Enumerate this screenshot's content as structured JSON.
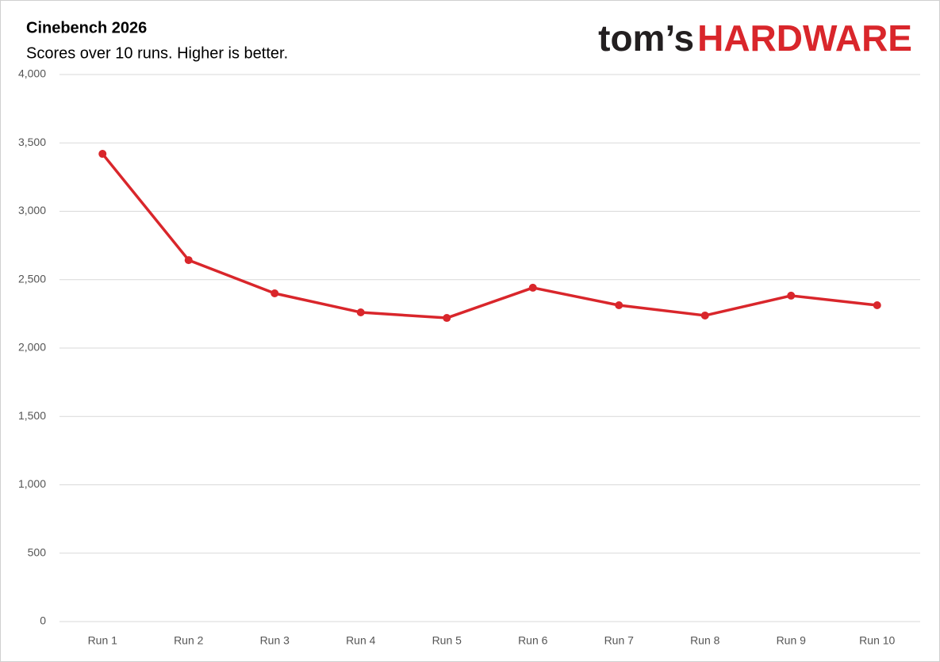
{
  "chart_data": {
    "type": "line",
    "title": "Cinebench 2026",
    "subtitle": "Scores over 10 runs. Higher is better.",
    "brand": {
      "prefix": "tom’s",
      "name": "HARDWARE"
    },
    "categories": [
      "Run 1",
      "Run 2",
      "Run 3",
      "Run 4",
      "Run 5",
      "Run 6",
      "Run 7",
      "Run 8",
      "Run 9",
      "Run 10"
    ],
    "series": [
      {
        "name": "Score",
        "color": "#d9262b",
        "values": [
          3420,
          2643,
          2400,
          2261,
          2220,
          2441,
          2313,
          2238,
          2383,
          2313
        ]
      }
    ],
    "ylim": [
      0,
      4000
    ],
    "yticks": [
      0,
      500,
      {
        "value": 1000,
        "label": "1,000"
      },
      {
        "value": 1500,
        "label": "1,500"
      },
      {
        "value": 2000,
        "label": "2,000"
      },
      {
        "value": 2500,
        "label": "2,500"
      },
      {
        "value": 3000,
        "label": "3,000"
      },
      {
        "value": 3500,
        "label": "3,500"
      },
      {
        "value": 4000,
        "label": "4,000"
      }
    ],
    "grid": true
  }
}
